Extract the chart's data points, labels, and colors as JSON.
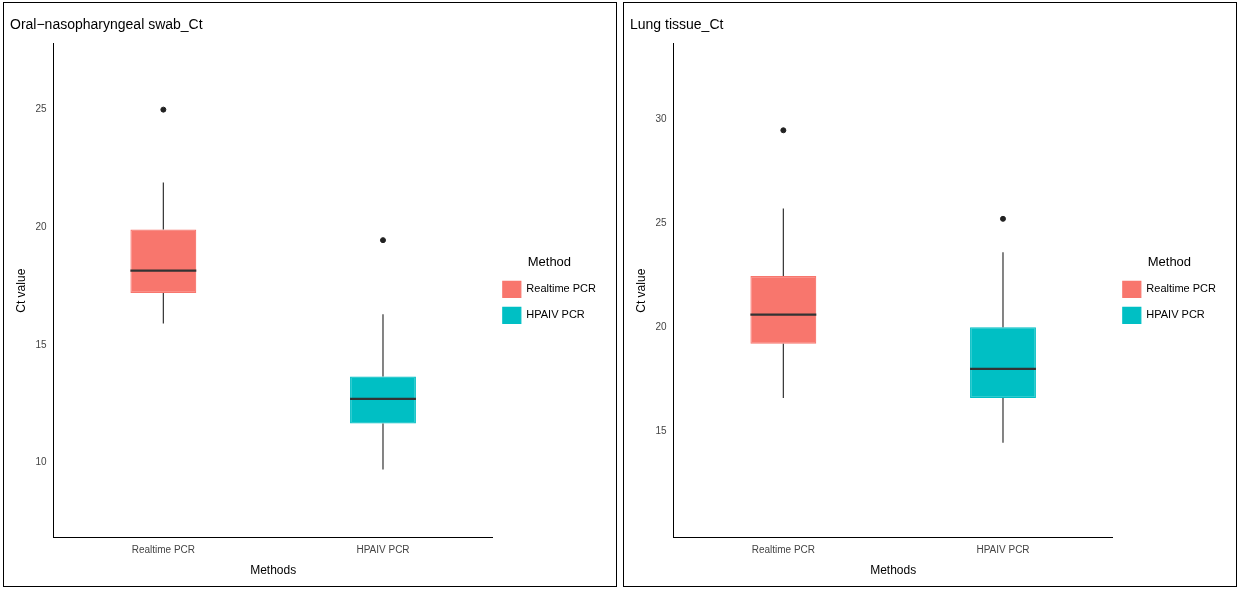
{
  "chart_data": [
    {
      "type": "box",
      "title": "Oral−nasopharyngeal swab_Ct",
      "xlabel": "Methods",
      "ylabel": "Ct value",
      "legend_title": "Method",
      "legend": "right",
      "grid": false,
      "categories": [
        "Realtime PCR",
        "HPAIV PCR"
      ],
      "ylim": [
        6.8,
        27.8
      ],
      "yticks": [
        10,
        15,
        20,
        25
      ],
      "series": [
        {
          "name": "Realtime PCR",
          "color": "#f8766d",
          "boxes": [
            {
              "low": 15.9,
              "q1": 17.2,
              "median": 18.15,
              "q3": 19.9,
              "high": 21.9,
              "outliers": [
                25.0
              ]
            },
            null
          ]
        },
        {
          "name": "HPAIV PCR",
          "color": "#00bfc4",
          "boxes": [
            null,
            {
              "low": 9.7,
              "q1": 11.65,
              "median": 12.7,
              "q3": 13.65,
              "high": 16.3,
              "outliers": [
                19.45
              ]
            }
          ]
        }
      ]
    },
    {
      "type": "box",
      "title": "Lung tissue_Ct",
      "xlabel": "Methods",
      "ylabel": "Ct value",
      "legend_title": "Method",
      "legend": "right",
      "grid": false,
      "categories": [
        "Realtime PCR",
        "HPAIV PCR"
      ],
      "ylim": [
        9.9,
        33.6
      ],
      "yticks": [
        15,
        20,
        25,
        30
      ],
      "series": [
        {
          "name": "Realtime PCR",
          "color": "#f8766d",
          "boxes": [
            {
              "low": 16.6,
              "q1": 19.2,
              "median": 20.6,
              "q3": 22.45,
              "high": 25.7,
              "outliers": [
                29.45
              ]
            },
            null
          ]
        },
        {
          "name": "HPAIV PCR",
          "color": "#00bfc4",
          "boxes": [
            null,
            {
              "low": 14.45,
              "q1": 16.6,
              "median": 18.0,
              "q3": 20.0,
              "high": 23.6,
              "outliers": [
                25.2
              ]
            }
          ]
        }
      ]
    }
  ]
}
